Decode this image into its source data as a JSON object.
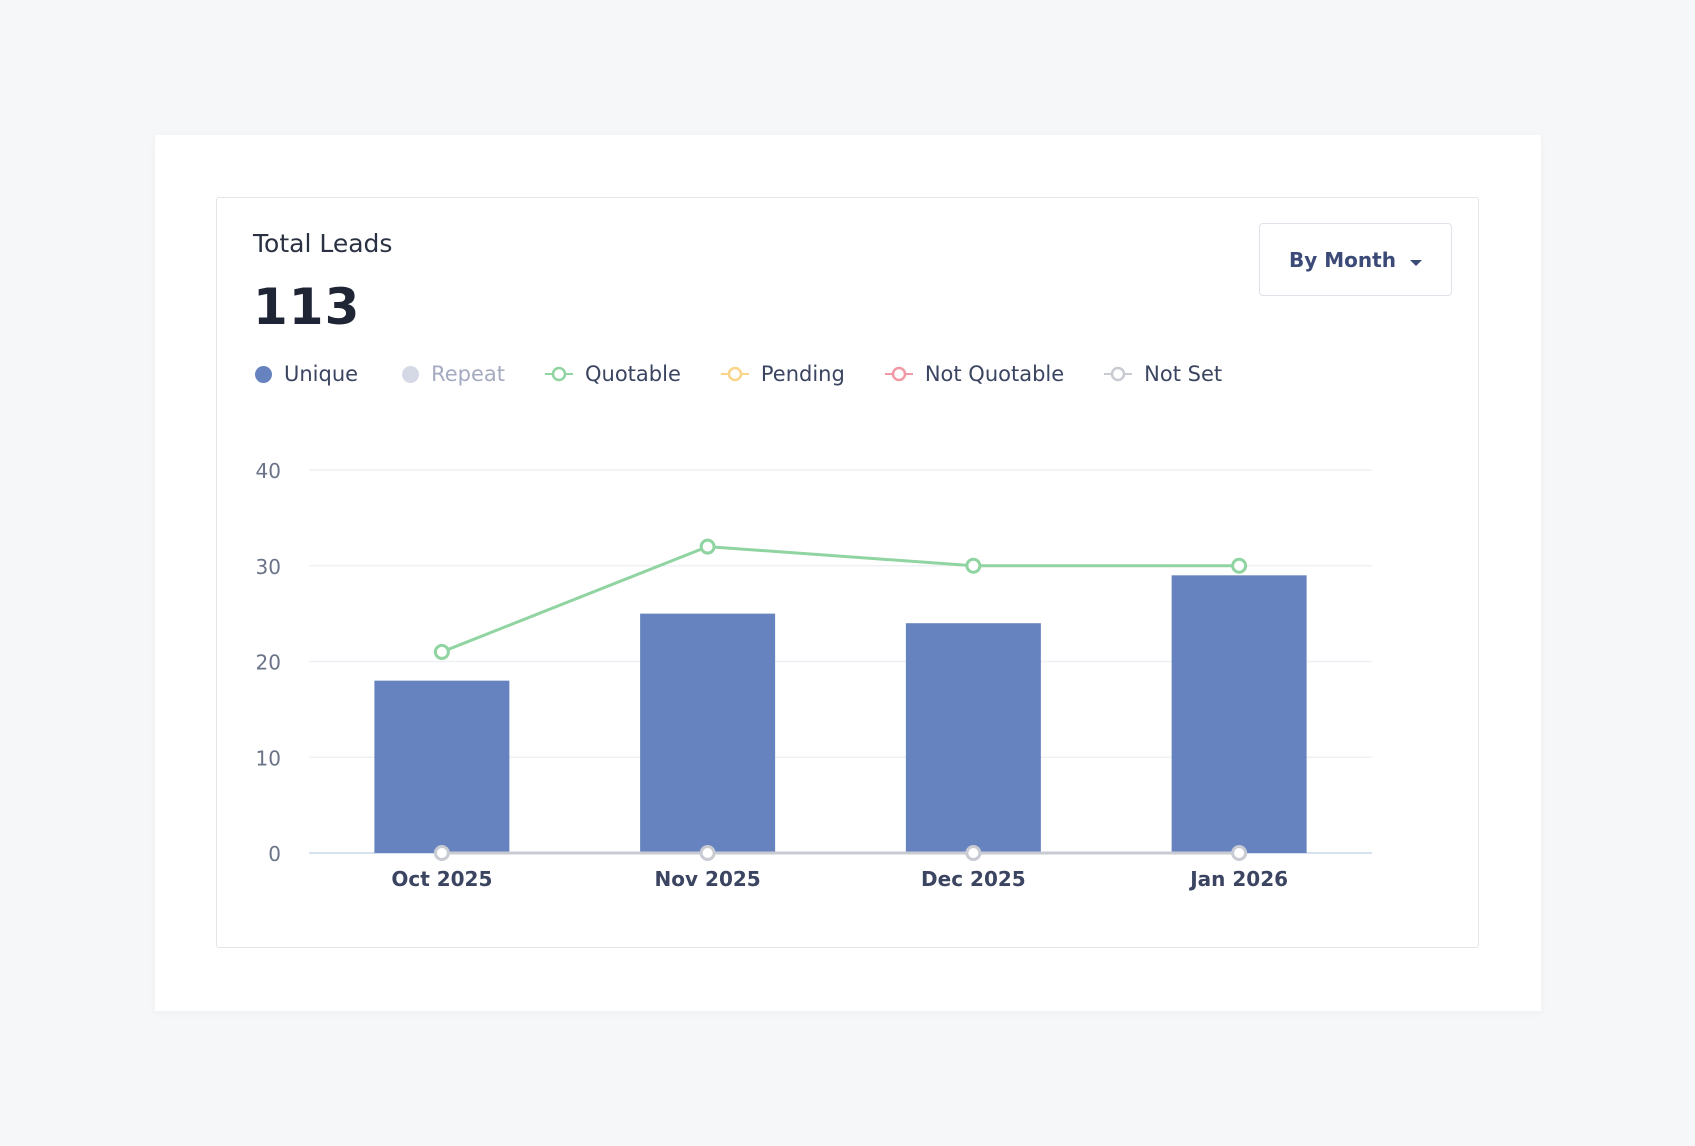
{
  "panel": {
    "title": "Total Leads",
    "total": "113"
  },
  "period_select": {
    "selected": "By Month"
  },
  "legend": [
    {
      "label": "Unique",
      "color": "#6783bf",
      "marker": "dot",
      "muted": false
    },
    {
      "label": "Repeat",
      "color": "#d5d9e6",
      "marker": "dot",
      "muted": true
    },
    {
      "label": "Quotable",
      "color": "#8fd4a1",
      "marker": "line-circle",
      "muted": false
    },
    {
      "label": "Pending",
      "color": "#f9d48a",
      "marker": "line-circle",
      "muted": false
    },
    {
      "label": "Not Quotable",
      "color": "#f19aa6",
      "marker": "line-circle",
      "muted": false
    },
    {
      "label": "Not Set",
      "color": "#c8cbd2",
      "marker": "line-circle",
      "muted": false
    }
  ],
  "chart_data": {
    "type": "bar",
    "categories": [
      "Oct 2025",
      "Nov 2025",
      "Dec 2025",
      "Jan 2026"
    ],
    "ylim": [
      0,
      40
    ],
    "yticks": [
      0,
      10,
      20,
      30,
      40
    ],
    "grid": true,
    "series": [
      {
        "name": "Unique",
        "type": "bar",
        "color": "#6783bf",
        "values": [
          18,
          25,
          24,
          29
        ]
      },
      {
        "name": "Quotable",
        "type": "line",
        "color": "#8fd4a1",
        "values": [
          21,
          32,
          30,
          30
        ]
      },
      {
        "name": "Not Set",
        "type": "line",
        "color": "#c8cbd2",
        "values": [
          0,
          0,
          0,
          0
        ]
      }
    ]
  }
}
